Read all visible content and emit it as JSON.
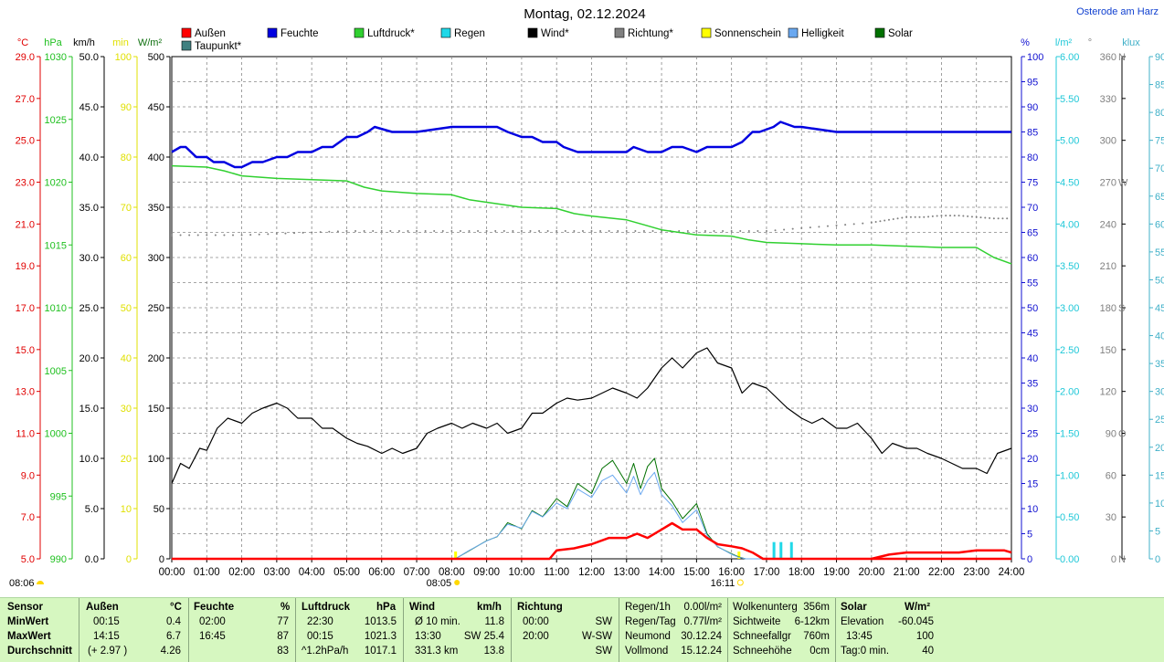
{
  "title": "Montag, 02.12.2024",
  "location": "Osterode am Harz",
  "legend": [
    {
      "label": "Außen",
      "color": "#ff0000"
    },
    {
      "label": "Taupunkt*",
      "color": "#408080"
    },
    {
      "label": "Feuchte",
      "color": "#0000e0"
    },
    {
      "label": "Luftdruck*",
      "color": "#30d030"
    },
    {
      "label": "Regen",
      "color": "#20d8e8"
    },
    {
      "label": "Wind*",
      "color": "#000000"
    },
    {
      "label": "Richtung*",
      "color": "#808080"
    },
    {
      "label": "Sonnenschein",
      "color": "#ffff00"
    },
    {
      "label": "Helligkeit",
      "color": "#6aa8f0"
    },
    {
      "label": "Solar",
      "color": "#007000"
    }
  ],
  "axis_units": {
    "temp": "°C",
    "press": "hPa",
    "wind": "km/h",
    "sun": "min",
    "solar": "W/m²",
    "hum": "%",
    "rain": "l/m²",
    "dir": "°",
    "lux": "klux"
  },
  "left_axes": {
    "temp": [
      "29.0",
      "27.0",
      "25.0",
      "23.0",
      "21.0",
      "19.0",
      "17.0",
      "15.0",
      "13.0",
      "11.0",
      "9.0",
      "7.0",
      "5.0"
    ],
    "press": [
      "1030",
      "1025",
      "1020",
      "1015",
      "1010",
      "1005",
      "1000",
      "995",
      "990"
    ],
    "wind": [
      "50.0",
      "45.0",
      "40.0",
      "35.0",
      "30.0",
      "25.0",
      "20.0",
      "15.0",
      "10.0",
      "5.0",
      "0.0"
    ],
    "sun": [
      "100",
      "90",
      "80",
      "70",
      "60",
      "50",
      "40",
      "30",
      "20",
      "10",
      "0"
    ],
    "solar": [
      "500",
      "450",
      "400",
      "350",
      "300",
      "250",
      "200",
      "150",
      "100",
      "50",
      "0"
    ]
  },
  "right_axes": {
    "hum": [
      "100",
      "95",
      "90",
      "85",
      "80",
      "75",
      "70",
      "65",
      "60",
      "55",
      "50",
      "45",
      "40",
      "35",
      "30",
      "25",
      "20",
      "15",
      "10",
      "5",
      "0"
    ],
    "rain": [
      "6.00",
      "5.50",
      "5.00",
      "4.50",
      "4.00",
      "3.50",
      "3.00",
      "2.50",
      "2.00",
      "1.50",
      "1.00",
      "0.50",
      "0.00"
    ],
    "dir": [
      {
        "v": "360",
        "l": "N"
      },
      {
        "v": "330",
        "l": ""
      },
      {
        "v": "300",
        "l": ""
      },
      {
        "v": "270",
        "l": "W"
      },
      {
        "v": "240",
        "l": ""
      },
      {
        "v": "210",
        "l": ""
      },
      {
        "v": "180",
        "l": "S"
      },
      {
        "v": "150",
        "l": ""
      },
      {
        "v": "120",
        "l": ""
      },
      {
        "v": "90",
        "l": "O"
      },
      {
        "v": "60",
        "l": ""
      },
      {
        "v": "30",
        "l": ""
      },
      {
        "v": "0",
        "l": "N"
      }
    ],
    "lux": [
      "90",
      "85",
      "80",
      "75",
      "70",
      "65",
      "60",
      "55",
      "50",
      "45",
      "40",
      "35",
      "30",
      "25",
      "20",
      "15",
      "10",
      "5",
      "0"
    ]
  },
  "sunrise": "08:05",
  "sunset": "16:11",
  "time_marker": "08:06",
  "chart_data": {
    "type": "line",
    "title": "Montag, 02.12.2024",
    "x_ticks": [
      "00:00",
      "01:00",
      "02:00",
      "03:00",
      "04:00",
      "05:00",
      "06:00",
      "07:00",
      "08:00",
      "09:00",
      "10:00",
      "11:00",
      "12:00",
      "13:00",
      "14:00",
      "15:00",
      "16:00",
      "17:00",
      "18:00",
      "19:00",
      "20:00",
      "21:00",
      "22:00",
      "23:00",
      "24:00"
    ],
    "x_range": [
      0,
      24
    ],
    "series": [
      {
        "name": "Feuchte",
        "unit": "%",
        "axis": "hum",
        "color": "#0000e0",
        "width": 2.5,
        "x": [
          0,
          0.25,
          0.4,
          0.7,
          1.0,
          1.2,
          1.5,
          1.8,
          2.0,
          2.3,
          2.6,
          3.0,
          3.3,
          3.6,
          4.0,
          4.3,
          4.6,
          4.8,
          5.0,
          5.3,
          5.6,
          5.8,
          6.3,
          6.8,
          7.0,
          8.0,
          9.0,
          9.3,
          9.6,
          10.0,
          10.3,
          10.6,
          11.0,
          11.2,
          11.6,
          12.0,
          12.5,
          13.0,
          13.2,
          13.6,
          14.0,
          14.3,
          14.6,
          15.0,
          15.3,
          15.6,
          16.0,
          16.3,
          16.6,
          16.8,
          17.2,
          17.4,
          17.8,
          18.0,
          19.0,
          20.0,
          21.0,
          22.0,
          23.0,
          24.0
        ],
        "y": [
          81,
          82,
          82,
          80,
          80,
          79,
          79,
          78,
          78,
          79,
          79,
          80,
          80,
          81,
          81,
          82,
          82,
          83,
          84,
          84,
          85,
          86,
          85,
          85,
          85,
          86,
          86,
          86,
          85,
          84,
          84,
          83,
          83,
          82,
          81,
          81,
          81,
          81,
          82,
          81,
          81,
          82,
          82,
          81,
          82,
          82,
          82,
          83,
          85,
          85,
          86,
          87,
          86,
          86,
          85,
          85,
          85,
          85,
          85,
          85
        ]
      },
      {
        "name": "Luftdruck*",
        "unit": "hPa",
        "axis": "press",
        "color": "#30d030",
        "width": 1.5,
        "x": [
          0,
          1,
          1.5,
          2,
          3,
          4,
          5,
          5.5,
          6,
          7,
          8,
          8.5,
          9,
          10,
          11,
          11.5,
          12,
          13,
          13.5,
          14,
          15,
          16,
          16.5,
          17,
          18,
          19,
          20,
          21,
          22,
          23,
          23.5,
          24
        ],
        "y": [
          1021.3,
          1021.2,
          1020.9,
          1020.5,
          1020.3,
          1020.2,
          1020.1,
          1019.6,
          1019.3,
          1019.1,
          1019.0,
          1018.6,
          1018.4,
          1018.0,
          1017.9,
          1017.5,
          1017.3,
          1017.0,
          1016.6,
          1016.2,
          1015.8,
          1015.7,
          1015.4,
          1015.2,
          1015.1,
          1015.0,
          1015.0,
          1014.9,
          1014.8,
          1014.8,
          1014.0,
          1013.5
        ]
      },
      {
        "name": "Wind*",
        "unit": "km/h",
        "axis": "wind",
        "color": "#000000",
        "width": 1.2,
        "x": [
          0,
          0.25,
          0.5,
          0.8,
          1.0,
          1.3,
          1.6,
          2.0,
          2.3,
          2.6,
          3.0,
          3.3,
          3.6,
          4.0,
          4.3,
          4.6,
          5.0,
          5.3,
          5.6,
          6.0,
          6.3,
          6.6,
          7.0,
          7.3,
          7.6,
          8.0,
          8.3,
          8.6,
          9.0,
          9.3,
          9.6,
          10.0,
          10.3,
          10.6,
          11.0,
          11.3,
          11.6,
          12.0,
          12.3,
          12.6,
          13.0,
          13.3,
          13.6,
          14.0,
          14.3,
          14.6,
          15.0,
          15.3,
          15.6,
          16.0,
          16.3,
          16.6,
          17.0,
          17.3,
          17.6,
          18.0,
          18.3,
          18.6,
          19.0,
          19.3,
          19.6,
          20.0,
          20.3,
          20.6,
          21.0,
          21.3,
          21.6,
          22.0,
          22.3,
          22.6,
          23.0,
          23.3,
          23.6,
          24.0
        ],
        "y": [
          7.5,
          9.5,
          9.0,
          11.0,
          10.8,
          13.0,
          14.0,
          13.5,
          14.5,
          15.0,
          15.5,
          15.0,
          14.0,
          14.0,
          13.0,
          13.0,
          12.0,
          11.5,
          11.2,
          10.5,
          11.0,
          10.5,
          11.0,
          12.5,
          13.0,
          13.5,
          13.0,
          13.5,
          13.0,
          13.5,
          12.5,
          13.0,
          14.5,
          14.5,
          15.5,
          16.0,
          15.8,
          16.0,
          16.5,
          17.0,
          16.5,
          16.0,
          17.0,
          19.0,
          20.0,
          19.0,
          20.5,
          21.0,
          19.5,
          19.0,
          16.5,
          17.5,
          17.0,
          16.0,
          15.0,
          14.0,
          13.5,
          14.0,
          13.0,
          13.0,
          13.5,
          12.0,
          10.5,
          11.5,
          11.0,
          11.0,
          10.5,
          10.0,
          9.5,
          9.0,
          9.0,
          8.5,
          10.5,
          11.0
        ]
      },
      {
        "name": "Richtung*",
        "unit": "°",
        "axis": "dir",
        "color": "#808080",
        "width": 0,
        "dotted": true,
        "x": [
          0,
          1,
          2,
          3,
          4,
          5,
          6,
          7,
          8,
          9,
          10,
          11,
          12,
          13,
          14,
          15,
          16,
          17,
          18,
          19,
          20,
          20.5,
          21,
          21.5,
          22,
          22.5,
          23,
          23.5,
          24
        ],
        "y": [
          232,
          232,
          232,
          233,
          234,
          235,
          235,
          235,
          235,
          235,
          235,
          235,
          235,
          235,
          235,
          235,
          235,
          235,
          237,
          239,
          241,
          243,
          245,
          245,
          246,
          246,
          245,
          244,
          244
        ]
      },
      {
        "name": "Solar",
        "unit": "W/m²",
        "axis": "solar",
        "color": "#007000",
        "width": 1,
        "x": [
          0,
          8.1,
          8.5,
          9.0,
          9.3,
          9.6,
          10.0,
          10.3,
          10.6,
          11.0,
          11.3,
          11.6,
          12.0,
          12.3,
          12.6,
          13.0,
          13.2,
          13.4,
          13.6,
          13.8,
          14.0,
          14.3,
          14.6,
          15.0,
          15.3,
          15.6,
          16.0,
          16.2,
          16.4,
          24
        ],
        "y": [
          0,
          0,
          8,
          18,
          22,
          36,
          30,
          48,
          42,
          60,
          52,
          75,
          65,
          90,
          98,
          75,
          95,
          70,
          92,
          100,
          70,
          57,
          40,
          55,
          25,
          12,
          5,
          2,
          0,
          0
        ]
      },
      {
        "name": "Helligkeit",
        "unit": "klux",
        "axis": "lux",
        "color": "#6aa8f0",
        "width": 1,
        "x": [
          0,
          8.1,
          8.5,
          9.0,
          9.3,
          9.6,
          10.0,
          10.3,
          10.6,
          11.0,
          11.3,
          11.6,
          12.0,
          12.3,
          12.6,
          13.0,
          13.2,
          13.4,
          13.6,
          13.8,
          14.0,
          14.3,
          14.6,
          15.0,
          15.3,
          15.6,
          16.0,
          16.2,
          16.4,
          24
        ],
        "y": [
          0,
          0,
          1.5,
          3.2,
          4.0,
          6.2,
          5.5,
          8.5,
          7.5,
          10.0,
          9.0,
          12.5,
          11.0,
          14.0,
          15.0,
          11.8,
          14.8,
          11.5,
          14.0,
          15.5,
          11.5,
          9.5,
          6.5,
          8.8,
          4.2,
          2.2,
          0.8,
          0.3,
          0,
          0
        ]
      },
      {
        "name": "Außen",
        "unit": "°C",
        "axis": "temp",
        "color": "#ff0000",
        "width": 2.5,
        "x": [
          0,
          10.8,
          11.0,
          11.5,
          12.0,
          12.5,
          13.0,
          13.3,
          13.6,
          14.0,
          14.3,
          14.6,
          15.0,
          15.3,
          15.6,
          16.0,
          16.3,
          16.6,
          16.9,
          17.0,
          24
        ],
        "y": [
          5.0,
          5.0,
          5.4,
          5.5,
          5.7,
          6.0,
          6.0,
          6.2,
          6.0,
          6.4,
          6.7,
          6.4,
          6.4,
          6.0,
          5.7,
          5.6,
          5.5,
          5.3,
          5.0,
          5.0,
          5.0
        ]
      },
      {
        "name": "Außen (Nacht)",
        "unit": "°C",
        "axis": "temp",
        "color": "#ff0000",
        "width": 2.5,
        "x": [
          20.0,
          20.5,
          21.0,
          22.0,
          22.5,
          23.0,
          23.5,
          23.8,
          24.0
        ],
        "y": [
          5.0,
          5.2,
          5.3,
          5.3,
          5.3,
          5.4,
          5.4,
          5.4,
          5.3
        ]
      }
    ],
    "rain_bars": {
      "name": "Regen",
      "unit": "l/m²",
      "axis": "rain",
      "color": "#20d8e8",
      "x": [
        17.2,
        17.4,
        17.7
      ],
      "y": [
        0.2,
        0.2,
        0.2
      ]
    },
    "sunshine_bars": {
      "name": "Sonnenschein",
      "unit": "min",
      "color": "#ffff00",
      "x": [
        8.1,
        16.2
      ],
      "y": [
        1,
        1
      ]
    }
  },
  "table": {
    "headers": {
      "sensor": "Sensor",
      "aussen": "Außen",
      "aussen_u": "°C",
      "feuchte": "Feuchte",
      "feuchte_u": "%",
      "luft": "Luftdruck",
      "luft_u": "hPa",
      "wind": "Wind",
      "wind_u": "km/h",
      "richtung": "Richtung"
    },
    "rows": [
      {
        "label": "MinWert",
        "a_t": "00:15",
        "a_v": "0.4",
        "f_t": "02:00",
        "f_v": "77",
        "l_t": "22:30",
        "l_v": "1013.5",
        "w_t": "Ø 10 min.",
        "w_v": "11.8",
        "r_t": "00:00",
        "r_v": "SW"
      },
      {
        "label": "MaxWert",
        "a_t": "14:15",
        "a_v": "6.7",
        "f_t": "16:45",
        "f_v": "87",
        "l_t": "00:15",
        "l_v": "1021.3",
        "w_t": "13:30",
        "w_v": "SW 25.4",
        "r_t": "20:00",
        "r_v": "W-SW"
      },
      {
        "label": "Durchschnitt",
        "a_t": "(+ 2.97 )",
        "a_v": "4.26",
        "f_t": "",
        "f_v": "83",
        "l_t": "^1.2hPa/h",
        "l_v": "1017.1",
        "w_t": "331.3 km",
        "w_v": "13.8",
        "r_t": "",
        "r_v": "SW"
      }
    ],
    "rain": [
      {
        "k": "Regen/1h",
        "v": "0.00l/m²"
      },
      {
        "k": "Regen/Tag",
        "v": "0.77l/m²"
      },
      {
        "k": "Neumond",
        "v": "30.12.24"
      },
      {
        "k": "Vollmond",
        "v": "15.12.24"
      }
    ],
    "misc": [
      {
        "k": "Wolkenunterg",
        "v": "356m"
      },
      {
        "k": "Sichtweite",
        "v": "6-12km"
      },
      {
        "k": "Schneefallgr",
        "v": "760m"
      },
      {
        "k": "Schneehöhe",
        "v": "0cm"
      }
    ],
    "solar_head": {
      "k": "Solar",
      "u": "W/m²"
    },
    "solar": [
      {
        "k": "Elevation",
        "v": "-60.045"
      },
      {
        "k": "13:45",
        "v": "100"
      },
      {
        "k": "Tag:0 min.",
        "v": "40"
      }
    ]
  }
}
